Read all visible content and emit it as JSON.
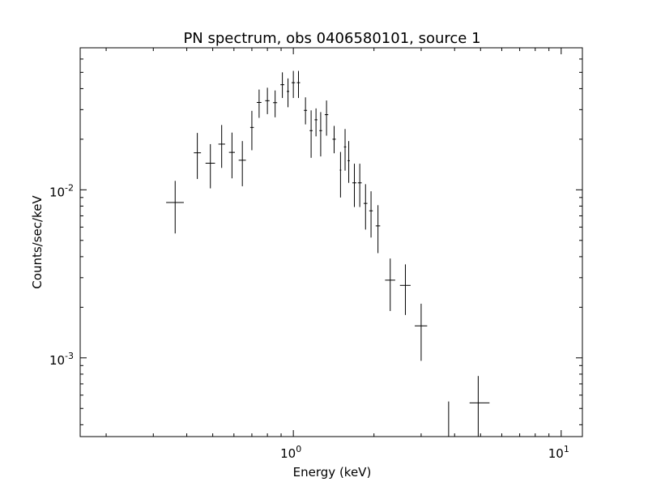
{
  "chart_data": {
    "type": "scatter",
    "title": "PN spectrum, obs 0406580101, source 1",
    "xlabel": "Energy (keV)",
    "ylabel": "Counts/sec/keV",
    "xscale": "log",
    "yscale": "log",
    "xlim": [
      0.16,
      12
    ],
    "ylim": [
      0.00034,
      0.07
    ],
    "grid": false,
    "legend": "none",
    "x_major_ticks": [
      {
        "value": 1,
        "base": "10",
        "exp": "0"
      },
      {
        "value": 10,
        "base": "10",
        "exp": "1"
      }
    ],
    "y_major_ticks": [
      {
        "value": 0.01,
        "base": "10",
        "exp": "-2"
      },
      {
        "value": 0.001,
        "base": "10",
        "exp": "-3"
      }
    ],
    "series": [
      {
        "marker": "cross-errorbar",
        "color": "#000000",
        "points": [
          {
            "x": 0.362,
            "x_lo": 0.335,
            "x_hi": 0.39,
            "y": 0.0084,
            "y_lo": 0.0055,
            "y_hi": 0.0113
          },
          {
            "x": 0.438,
            "x_lo": 0.425,
            "x_hi": 0.452,
            "y": 0.0166,
            "y_lo": 0.0116,
            "y_hi": 0.0218
          },
          {
            "x": 0.49,
            "x_lo": 0.47,
            "x_hi": 0.51,
            "y": 0.0144,
            "y_lo": 0.0102,
            "y_hi": 0.0187
          },
          {
            "x": 0.54,
            "x_lo": 0.525,
            "x_hi": 0.556,
            "y": 0.0187,
            "y_lo": 0.0135,
            "y_hi": 0.0243
          },
          {
            "x": 0.59,
            "x_lo": 0.575,
            "x_hi": 0.605,
            "y": 0.0167,
            "y_lo": 0.0117,
            "y_hi": 0.0219
          },
          {
            "x": 0.645,
            "x_lo": 0.625,
            "x_hi": 0.665,
            "y": 0.015,
            "y_lo": 0.0105,
            "y_hi": 0.0195
          },
          {
            "x": 0.7,
            "x_lo": 0.69,
            "x_hi": 0.712,
            "y": 0.0235,
            "y_lo": 0.0172,
            "y_hi": 0.0295
          },
          {
            "x": 0.745,
            "x_lo": 0.73,
            "x_hi": 0.76,
            "y": 0.0331,
            "y_lo": 0.0268,
            "y_hi": 0.0395
          },
          {
            "x": 0.8,
            "x_lo": 0.785,
            "x_hi": 0.815,
            "y": 0.0339,
            "y_lo": 0.0282,
            "y_hi": 0.0405
          },
          {
            "x": 0.855,
            "x_lo": 0.84,
            "x_hi": 0.87,
            "y": 0.033,
            "y_lo": 0.027,
            "y_hi": 0.039
          },
          {
            "x": 0.91,
            "x_lo": 0.895,
            "x_hi": 0.925,
            "y": 0.0422,
            "y_lo": 0.0352,
            "y_hi": 0.05
          },
          {
            "x": 0.955,
            "x_lo": 0.945,
            "x_hi": 0.965,
            "y": 0.0385,
            "y_lo": 0.031,
            "y_hi": 0.046
          },
          {
            "x": 1.0,
            "x_lo": 0.985,
            "x_hi": 1.015,
            "y": 0.0434,
            "y_lo": 0.0352,
            "y_hi": 0.051
          },
          {
            "x": 1.045,
            "x_lo": 1.03,
            "x_hi": 1.06,
            "y": 0.0434,
            "y_lo": 0.0352,
            "y_hi": 0.051
          },
          {
            "x": 1.11,
            "x_lo": 1.095,
            "x_hi": 1.125,
            "y": 0.0297,
            "y_lo": 0.0245,
            "y_hi": 0.0355
          },
          {
            "x": 1.165,
            "x_lo": 1.15,
            "x_hi": 1.18,
            "y": 0.0225,
            "y_lo": 0.0155,
            "y_hi": 0.0297
          },
          {
            "x": 1.215,
            "x_lo": 1.2,
            "x_hi": 1.23,
            "y": 0.0261,
            "y_lo": 0.0208,
            "y_hi": 0.0305
          },
          {
            "x": 1.265,
            "x_lo": 1.25,
            "x_hi": 1.28,
            "y": 0.0225,
            "y_lo": 0.0158,
            "y_hi": 0.029
          },
          {
            "x": 1.33,
            "x_lo": 1.31,
            "x_hi": 1.35,
            "y": 0.028,
            "y_lo": 0.021,
            "y_hi": 0.034
          },
          {
            "x": 1.42,
            "x_lo": 1.4,
            "x_hi": 1.44,
            "y": 0.02,
            "y_lo": 0.0165,
            "y_hi": 0.024
          },
          {
            "x": 1.5,
            "x_lo": 1.49,
            "x_hi": 1.51,
            "y": 0.0131,
            "y_lo": 0.009,
            "y_hi": 0.0168
          },
          {
            "x": 1.56,
            "x_lo": 1.545,
            "x_hi": 1.575,
            "y": 0.018,
            "y_lo": 0.013,
            "y_hi": 0.023
          },
          {
            "x": 1.61,
            "x_lo": 1.595,
            "x_hi": 1.625,
            "y": 0.0149,
            "y_lo": 0.011,
            "y_hi": 0.0195
          },
          {
            "x": 1.69,
            "x_lo": 1.66,
            "x_hi": 1.72,
            "y": 0.011,
            "y_lo": 0.0079,
            "y_hi": 0.0143
          },
          {
            "x": 1.77,
            "x_lo": 1.74,
            "x_hi": 1.8,
            "y": 0.011,
            "y_lo": 0.0079,
            "y_hi": 0.0143
          },
          {
            "x": 1.86,
            "x_lo": 1.83,
            "x_hi": 1.89,
            "y": 0.0083,
            "y_lo": 0.0058,
            "y_hi": 0.0108
          },
          {
            "x": 1.95,
            "x_lo": 1.92,
            "x_hi": 1.98,
            "y": 0.0075,
            "y_lo": 0.0052,
            "y_hi": 0.0098
          },
          {
            "x": 2.07,
            "x_lo": 2.03,
            "x_hi": 2.11,
            "y": 0.0061,
            "y_lo": 0.0042,
            "y_hi": 0.0081
          },
          {
            "x": 2.3,
            "x_lo": 2.2,
            "x_hi": 2.4,
            "y": 0.0029,
            "y_lo": 0.0019,
            "y_hi": 0.0039
          },
          {
            "x": 2.62,
            "x_lo": 2.5,
            "x_hi": 2.74,
            "y": 0.0027,
            "y_lo": 0.0018,
            "y_hi": 0.0036
          },
          {
            "x": 3.0,
            "x_lo": 2.84,
            "x_hi": 3.16,
            "y": 0.00155,
            "y_lo": 0.00096,
            "y_hi": 0.0021
          },
          {
            "x": 3.8,
            "x_lo": 3.8,
            "x_hi": 3.8,
            "y": 0.00034,
            "y_lo": 0.00034,
            "y_hi": 0.00055
          },
          {
            "x": 4.9,
            "x_lo": 4.55,
            "x_hi": 5.4,
            "y": 0.00054,
            "y_lo": 0.00034,
            "y_hi": 0.00078
          }
        ]
      }
    ]
  }
}
